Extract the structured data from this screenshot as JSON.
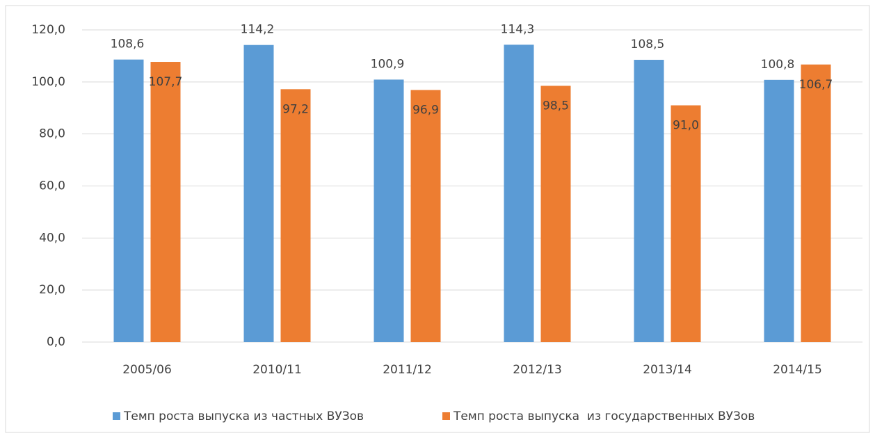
{
  "chart_data": {
    "type": "bar",
    "categories": [
      "2005/06",
      "2010/11",
      "2011/12",
      "2012/13",
      "2013/14",
      "2014/15"
    ],
    "series": [
      {
        "name": "Темп роста выпуска из частных ВУЗов",
        "color": "#5b9bd5",
        "values": [
          108.6,
          114.2,
          100.9,
          114.3,
          108.5,
          100.8
        ],
        "value_labels": [
          "108,6",
          "114,2",
          "100,9",
          "114,3",
          "108,5",
          "100,8"
        ]
      },
      {
        "name": "Темп роста выпуска  из государственных ВУЗов",
        "color": "#ed7d31",
        "values": [
          107.7,
          97.2,
          96.9,
          98.5,
          91.0,
          106.7
        ],
        "value_labels": [
          "107,7",
          "97,2",
          "96,9",
          "98,5",
          "91,0",
          "106,7"
        ]
      }
    ],
    "ylim": [
      0,
      120
    ],
    "yticks": [
      {
        "value": 0,
        "label": "0,0"
      },
      {
        "value": 20,
        "label": "20,0"
      },
      {
        "value": 40,
        "label": "40,0"
      },
      {
        "value": 60,
        "label": "60,0"
      },
      {
        "value": 80,
        "label": "80,0"
      },
      {
        "value": 100,
        "label": "100,0"
      },
      {
        "value": 120,
        "label": "120,0"
      }
    ],
    "grid": true,
    "legend": "bottom"
  }
}
